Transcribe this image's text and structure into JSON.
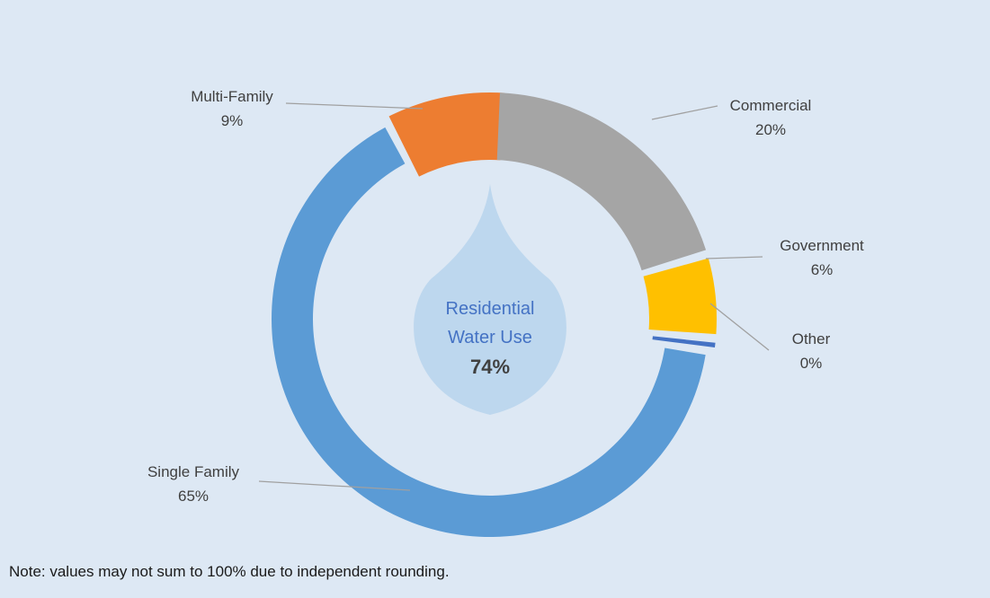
{
  "chart_data": {
    "type": "pie",
    "subtype": "donut",
    "slices": [
      {
        "label": "Single Family",
        "value": 65,
        "display": "65%",
        "color": "#5b9bd5"
      },
      {
        "label": "Multi-Family",
        "value": 9,
        "display": "9%",
        "color": "#ed7d31"
      },
      {
        "label": "Commercial",
        "value": 20,
        "display": "20%",
        "color": "#a5a5a5"
      },
      {
        "label": "Government",
        "value": 6,
        "display": "6%",
        "color": "#ffc000"
      },
      {
        "label": "Other",
        "value": 0,
        "display": "0%",
        "color": "#4472c4"
      }
    ],
    "center": {
      "line1": "Residential",
      "line2": "Water Use",
      "value": "74%",
      "drop_color": "#bdd7ee",
      "text_color": "#4472c4",
      "value_color": "#404040"
    },
    "background": "#dde8f4",
    "leader_line_color": "#a0a0a0"
  },
  "note": "Note: values may not sum to 100% due to independent rounding."
}
